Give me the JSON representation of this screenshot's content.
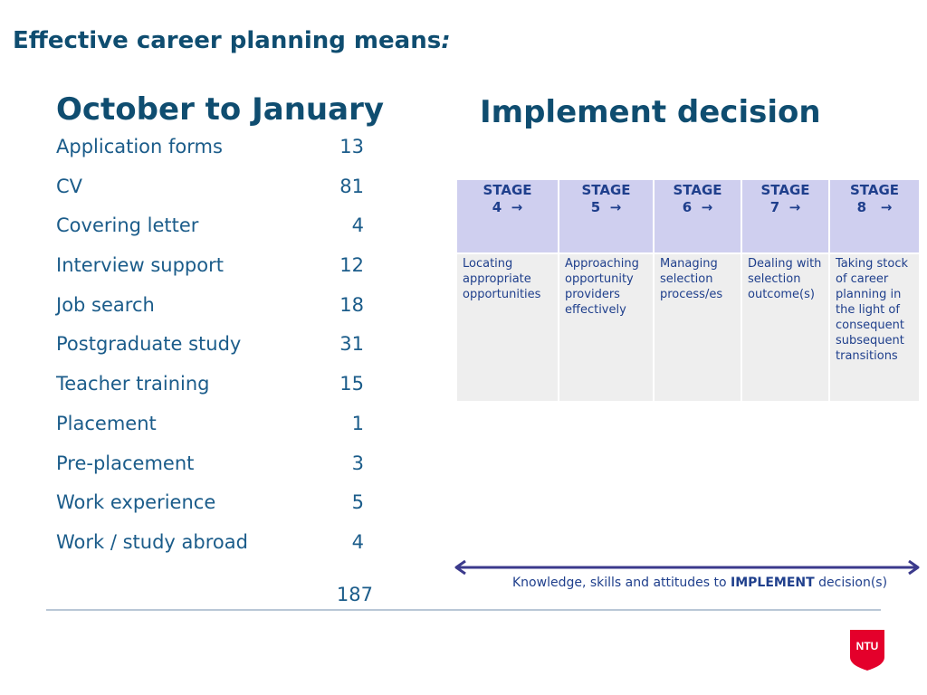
{
  "slide": {
    "title": "Effective career planning means",
    "title_suffix": ":"
  },
  "left": {
    "heading": "October to January",
    "items": [
      {
        "label": "Application forms",
        "value": "13"
      },
      {
        "label": "CV",
        "value": "81"
      },
      {
        "label": "Covering letter",
        "value": "4"
      },
      {
        "label": "Interview support",
        "value": "12"
      },
      {
        "label": "Job search",
        "value": "18"
      },
      {
        "label": "Postgraduate study",
        "value": "31"
      },
      {
        "label": "Teacher training",
        "value": "15"
      },
      {
        "label": "Placement",
        "value": "1"
      },
      {
        "label": "Pre-placement",
        "value": "3"
      },
      {
        "label": "Work experience",
        "value": "5"
      },
      {
        "label": "Work / study abroad",
        "value": "4"
      }
    ],
    "total": "187"
  },
  "right": {
    "heading": "Implement decision",
    "stages": [
      {
        "label": "STAGE",
        "number": "4",
        "arrow": "→",
        "desc": "Locating appropriate opportunities"
      },
      {
        "label": "STAGE",
        "number": "5",
        "arrow": "→",
        "desc": "Approaching opportunity providers effectively"
      },
      {
        "label": "STAGE",
        "number": "6",
        "arrow": "→",
        "desc": "Managing selection process/es"
      },
      {
        "label": "STAGE",
        "number": "7",
        "arrow": "→",
        "desc": "Dealing with selection outcome(s)"
      },
      {
        "label": "STAGE",
        "number": "8",
        "arrow": "→",
        "desc": "Taking stock of career planning in the light of consequent subsequent transitions"
      }
    ],
    "caption_pre": "Knowledge, skills and attitudes to",
    "caption_bold": "IMPLEMENT",
    "caption_post": "decision(s)"
  },
  "logo": {
    "text": "NTU",
    "color": "#e4002b"
  },
  "colors": {
    "accent": "#0f4d70",
    "header_cell": "#cfcfef",
    "body_cell": "#eeeeee",
    "arrow": "#3b3a8c"
  }
}
